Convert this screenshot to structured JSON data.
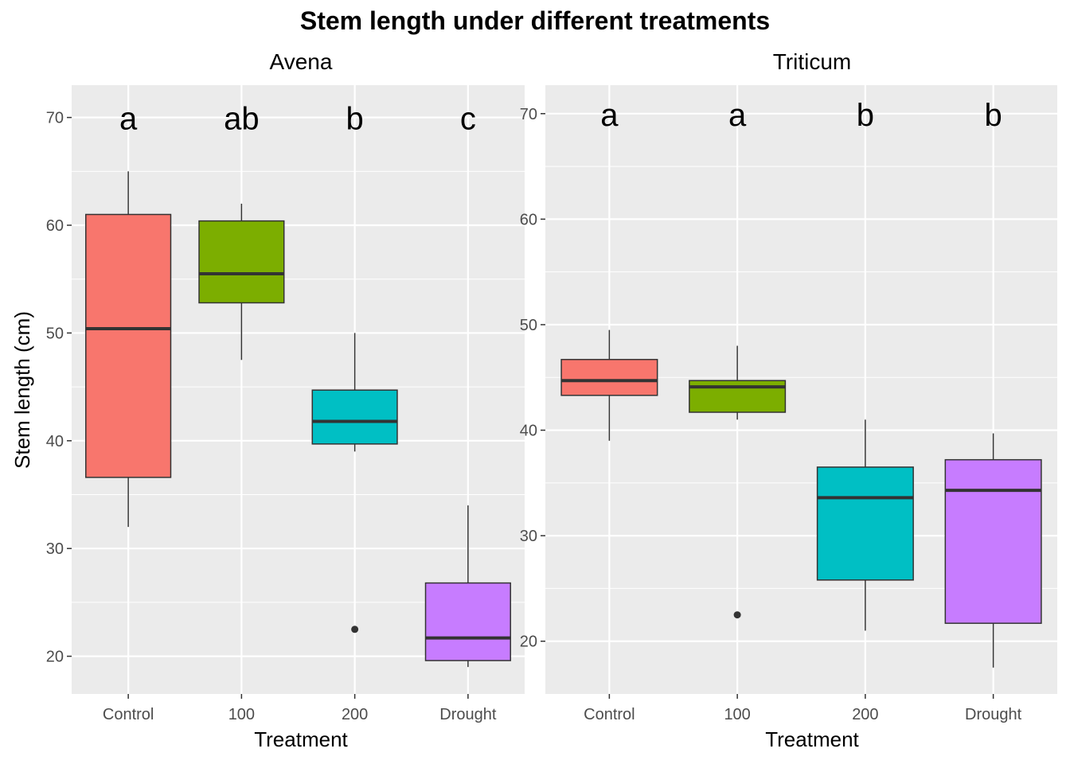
{
  "chart_data": {
    "type": "boxplot",
    "title": "Stem length under different treatments",
    "ylabel": "Stem length (cm)",
    "categories": [
      "Control",
      "100",
      "200",
      "Drought"
    ],
    "fills": [
      "#F8766D",
      "#7CAE00",
      "#00BFC4",
      "#C77CFF"
    ],
    "panels": [
      {
        "name": "Avena",
        "xlabel": "Treatment",
        "ylim": [
          16.5,
          73
        ],
        "yticks": [
          20,
          30,
          40,
          50,
          60,
          70
        ],
        "boxes": [
          {
            "category": "Control",
            "min": 32,
            "q1": 36.6,
            "median": 50.4,
            "q3": 61,
            "max": 65,
            "outliers": []
          },
          {
            "category": "100",
            "min": 47.5,
            "q1": 52.8,
            "median": 55.5,
            "q3": 60.4,
            "max": 62,
            "outliers": []
          },
          {
            "category": "200",
            "min": 39,
            "q1": 39.7,
            "median": 41.8,
            "q3": 44.7,
            "max": 50,
            "outliers": [
              22.5
            ]
          },
          {
            "category": "Drought",
            "min": 19,
            "q1": 19.6,
            "median": 21.7,
            "q3": 26.8,
            "max": 34,
            "outliers": []
          }
        ],
        "letters": [
          "a",
          "ab",
          "b",
          "c"
        ],
        "letter_y": 70
      },
      {
        "name": "Triticum",
        "xlabel": "Treatment",
        "ylim": [
          15,
          72.7
        ],
        "yticks": [
          20,
          30,
          40,
          50,
          60,
          70
        ],
        "boxes": [
          {
            "category": "Control",
            "min": 39,
            "q1": 43.3,
            "median": 44.7,
            "q3": 46.7,
            "max": 49.5,
            "outliers": []
          },
          {
            "category": "100",
            "min": 41,
            "q1": 41.7,
            "median": 44.1,
            "q3": 44.7,
            "max": 48,
            "outliers": [
              22.5
            ]
          },
          {
            "category": "200",
            "min": 21,
            "q1": 25.8,
            "median": 33.6,
            "q3": 36.5,
            "max": 41,
            "outliers": []
          },
          {
            "category": "Drought",
            "min": 17.5,
            "q1": 21.7,
            "median": 34.3,
            "q3": 37.2,
            "max": 39.7,
            "outliers": []
          }
        ],
        "letters": [
          "a",
          "a",
          "b",
          "b"
        ],
        "letter_y": 70
      }
    ],
    "grid": true,
    "legend": "none"
  }
}
